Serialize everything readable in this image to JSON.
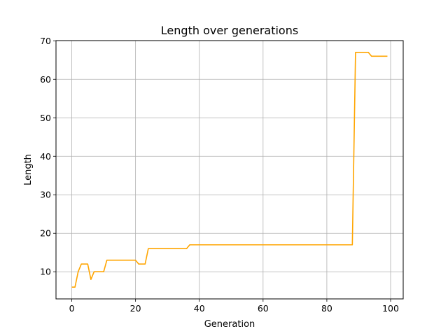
{
  "chart_data": {
    "type": "line",
    "title": "Length over generations",
    "xlabel": "Generation",
    "ylabel": "Length",
    "xlim": [
      -4.95,
      103.95
    ],
    "ylim": [
      2.95,
      70.05
    ],
    "xticks": [
      0,
      20,
      40,
      60,
      80,
      100
    ],
    "yticks": [
      10,
      20,
      30,
      40,
      50,
      60,
      70
    ],
    "grid": true,
    "line_color": "#ffa500",
    "series": [
      {
        "x": [
          0,
          1,
          2,
          3,
          4,
          5,
          6,
          7,
          8,
          9,
          10,
          11,
          12,
          13,
          14,
          15,
          16,
          17,
          18,
          19,
          20,
          21,
          22,
          23,
          24,
          25,
          26,
          27,
          28,
          29,
          30,
          31,
          32,
          33,
          34,
          35,
          36,
          37,
          38,
          39,
          40,
          41,
          42,
          43,
          44,
          45,
          46,
          47,
          48,
          49,
          50,
          51,
          52,
          53,
          54,
          55,
          56,
          57,
          58,
          59,
          60,
          61,
          62,
          63,
          64,
          65,
          66,
          67,
          68,
          69,
          70,
          71,
          72,
          73,
          74,
          75,
          76,
          77,
          78,
          79,
          80,
          81,
          82,
          83,
          84,
          85,
          86,
          87,
          88,
          89,
          90,
          91,
          92,
          93,
          94,
          95,
          96,
          97,
          98,
          99
        ],
        "values": [
          6,
          6,
          10,
          12,
          12,
          12,
          8,
          10,
          10,
          10,
          10,
          13,
          13,
          13,
          13,
          13,
          13,
          13,
          13,
          13,
          13,
          12,
          12,
          12,
          16,
          16,
          16,
          16,
          16,
          16,
          16,
          16,
          16,
          16,
          16,
          16,
          16,
          17,
          17,
          17,
          17,
          17,
          17,
          17,
          17,
          17,
          17,
          17,
          17,
          17,
          17,
          17,
          17,
          17,
          17,
          17,
          17,
          17,
          17,
          17,
          17,
          17,
          17,
          17,
          17,
          17,
          17,
          17,
          17,
          17,
          17,
          17,
          17,
          17,
          17,
          17,
          17,
          17,
          17,
          17,
          17,
          17,
          17,
          17,
          17,
          17,
          17,
          17,
          17,
          67,
          67,
          67,
          67,
          67,
          66,
          66,
          66,
          66,
          66,
          66
        ]
      }
    ]
  }
}
